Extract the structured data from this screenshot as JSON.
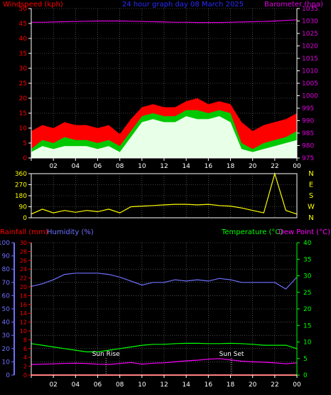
{
  "colors": {
    "background": "#000000",
    "grid": "#7a7a7a",
    "windspeed": "#ff0000",
    "gust_line": "#00c800",
    "wind_avg": "#e8ffe8",
    "barometer": "#e000e0",
    "title": "#2a2aff",
    "direction": "#ffff00",
    "rainfall": "#ff0000",
    "humidity": "#7070ff",
    "temperature": "#00ff00",
    "dewpoint": "#ff00ff",
    "sun_marker": "#ffffff"
  },
  "chart_data": [
    {
      "type": "line",
      "panel": "wind-barometer",
      "title": "24 hour graph day   08 March 2025",
      "left_axis_label": "Windspeed (kph)",
      "right_axis_label": "Barometer (hpa)",
      "left_ticks": [
        "0",
        "5",
        "10",
        "15",
        "20",
        "25",
        "30",
        "35",
        "40",
        "45",
        "50"
      ],
      "right_ticks": [
        "975",
        "980",
        "985",
        "990",
        "995",
        "1000",
        "1005",
        "1010",
        "1015",
        "1020",
        "1025",
        "1030",
        "1035"
      ],
      "x_ticks": [
        "02",
        "04",
        "06",
        "08",
        "10",
        "12",
        "14",
        "16",
        "18",
        "20",
        "22",
        "00"
      ],
      "ylim_left": [
        0,
        50
      ],
      "ylim_right": [
        975,
        1035
      ],
      "x_hours": [
        0,
        1,
        2,
        3,
        4,
        5,
        6,
        7,
        8,
        9,
        10,
        11,
        12,
        13,
        14,
        15,
        16,
        17,
        18,
        19,
        20,
        21,
        22,
        23,
        24
      ],
      "series": [
        {
          "role": "gust-max",
          "color": "#ff0000",
          "values": [
            9,
            11,
            10,
            12,
            11,
            11,
            10,
            11,
            8,
            13,
            17,
            18,
            17,
            17,
            19,
            20,
            18,
            19,
            18,
            12,
            9,
            11,
            12,
            13,
            15
          ]
        },
        {
          "role": "gust",
          "color": "#00c800",
          "values": [
            3,
            6,
            5,
            7,
            6,
            6,
            5,
            6,
            4,
            9,
            14,
            15,
            14,
            14,
            16,
            16,
            15,
            16,
            15,
            5,
            3,
            5,
            6,
            7,
            9
          ]
        },
        {
          "role": "average",
          "color": "#e8ffe8",
          "values": [
            2,
            4,
            3,
            4,
            4,
            4,
            3,
            4,
            2,
            7,
            12,
            13,
            12,
            12,
            14,
            13,
            13,
            14,
            12,
            3,
            2,
            3,
            4,
            5,
            6
          ]
        },
        {
          "role": "barometer",
          "color": "#e000e0",
          "values": [
            1029.5,
            1029.5,
            1029.6,
            1029.7,
            1029.8,
            1029.9,
            1030,
            1030,
            1030,
            1029.9,
            1029.8,
            1029.7,
            1029.6,
            1029.5,
            1029.5,
            1029.4,
            1029.4,
            1029.4,
            1029.5,
            1029.6,
            1029.7,
            1029.8,
            1030,
            1030.2,
            1030.5
          ]
        }
      ]
    },
    {
      "type": "line",
      "panel": "wind-direction",
      "left_ticks": [
        "0",
        "90",
        "180",
        "270",
        "360"
      ],
      "compass": [
        "N",
        "W",
        "S",
        "E",
        "N"
      ],
      "x_ticks": [
        "02",
        "04",
        "06",
        "08",
        "10",
        "12",
        "14",
        "16",
        "18",
        "20",
        "22",
        "00"
      ],
      "ylim": [
        0,
        360
      ],
      "x_hours": [
        0,
        1,
        2,
        3,
        4,
        5,
        6,
        7,
        8,
        9,
        10,
        11,
        12,
        13,
        14,
        15,
        16,
        17,
        18,
        19,
        20,
        21,
        22,
        23,
        24
      ],
      "series": [
        {
          "role": "direction",
          "color": "#ffff00",
          "values": [
            30,
            70,
            40,
            60,
            45,
            60,
            50,
            70,
            40,
            90,
            95,
            100,
            105,
            110,
            110,
            105,
            110,
            100,
            95,
            80,
            60,
            40,
            360,
            60,
            30
          ]
        }
      ]
    },
    {
      "type": "line",
      "panel": "temperature-humidity",
      "legend": {
        "rainfall": "Rainfall (mm)",
        "humidity": "Humidity (%)",
        "temperature": "Temperature (°C)",
        "dewpoint": "Dew Point (°C)"
      },
      "humidity_ticks": [
        "0",
        "10",
        "20",
        "30",
        "40",
        "50",
        "60",
        "70",
        "80",
        "90",
        "100"
      ],
      "rain_ticks": [
        "0",
        "2",
        "4",
        "6",
        "8",
        "10",
        "12",
        "14",
        "16",
        "18",
        "20",
        "22",
        "24",
        "26",
        "28",
        "30"
      ],
      "temp_ticks": [
        "0",
        "5",
        "10",
        "15",
        "20",
        "25",
        "30",
        "35",
        "40"
      ],
      "x_ticks": [
        "02",
        "04",
        "06",
        "08",
        "10",
        "12",
        "14",
        "16",
        "18",
        "20",
        "22",
        "00"
      ],
      "ylim_humidity": [
        0,
        100
      ],
      "ylim_temp": [
        0,
        40
      ],
      "ylim_rain": [
        0,
        30
      ],
      "x_hours": [
        0,
        1,
        2,
        3,
        4,
        5,
        6,
        7,
        8,
        9,
        10,
        11,
        12,
        13,
        14,
        15,
        16,
        17,
        18,
        19,
        20,
        21,
        22,
        23,
        24
      ],
      "series": [
        {
          "role": "humidity",
          "color": "#7070ff",
          "values": [
            67,
            69,
            72,
            76,
            77,
            77,
            77,
            76,
            74,
            71,
            68,
            70,
            70,
            72,
            71,
            72,
            71,
            73,
            72,
            70,
            70,
            70,
            70,
            65,
            74
          ]
        },
        {
          "role": "temperature",
          "color": "#00ff00",
          "values": [
            9.5,
            9,
            8.5,
            8,
            7.5,
            7,
            7,
            7.5,
            8,
            8.5,
            9,
            9.3,
            9.3,
            9.5,
            9.6,
            9.6,
            9.5,
            9.5,
            9.6,
            9.5,
            9.3,
            9,
            9,
            9,
            8
          ]
        },
        {
          "role": "dewpoint",
          "color": "#ff00ff",
          "values": [
            3.2,
            3.3,
            3.4,
            3.5,
            3.6,
            3.5,
            3.3,
            3.2,
            3.5,
            3.8,
            3.3,
            3.6,
            3.7,
            4,
            4.3,
            4.5,
            4.8,
            5,
            4.6,
            4.2,
            4,
            3.9,
            3.7,
            3.4,
            3.7
          ]
        },
        {
          "role": "rainfall",
          "color": "#ff0000",
          "values": [
            0,
            0,
            0,
            0,
            0,
            0,
            0,
            0,
            0,
            0,
            0,
            0,
            0,
            0,
            0,
            0,
            0,
            0,
            0,
            0,
            0,
            0,
            0,
            0,
            0
          ]
        }
      ],
      "sun_rise": {
        "label": "Sun Rise",
        "hour": 6.75
      },
      "sun_set": {
        "label": "Sun Set",
        "hour": 18.1
      }
    }
  ]
}
